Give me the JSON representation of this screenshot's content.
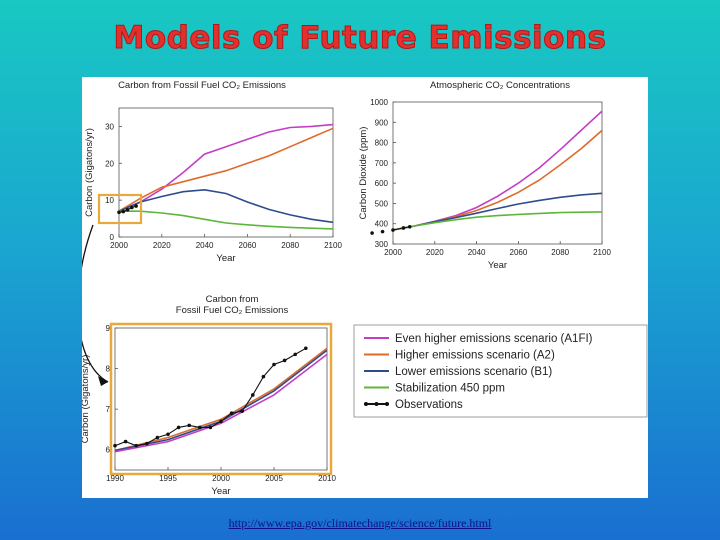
{
  "slide": {
    "title": "Models of Future Emissions",
    "source_url": "http://www.epa.gov/climatechange/science/future.html"
  },
  "colors": {
    "A1FI": "#c23ec6",
    "A2": "#e06a2a",
    "B1": "#2e4c8c",
    "stab": "#5cb63a",
    "obs": "#111111",
    "highlight": "#e8a83a",
    "title": "#e2302e"
  },
  "legend": {
    "items": [
      {
        "key": "A1FI",
        "label": "Even higher emissions scenario (A1FI)",
        "marker": false
      },
      {
        "key": "A2",
        "label": "Higher emissions scenario (A2)",
        "marker": false
      },
      {
        "key": "B1",
        "label": "Lower emissions scenario (B1)",
        "marker": false
      },
      {
        "key": "stab",
        "label": "Stabilization 450 ppm",
        "marker": false
      },
      {
        "key": "obs",
        "label": "Observations",
        "marker": true
      }
    ]
  },
  "chart_data": [
    {
      "id": "fossil",
      "type": "line",
      "title": "Carbon from Fossil Fuel CO₂ Emissions",
      "xlabel": "Year",
      "ylabel": "Carbon (Gigatons/yr)",
      "xlim": [
        2000,
        2100
      ],
      "ylim": [
        0,
        35
      ],
      "xticks": [
        2000,
        2020,
        2040,
        2060,
        2080,
        2100
      ],
      "yticks": [
        0,
        10,
        20,
        30
      ],
      "series": [
        {
          "key": "A1FI",
          "x": [
            2000,
            2010,
            2020,
            2030,
            2040,
            2050,
            2060,
            2070,
            2080,
            2090,
            2100
          ],
          "y": [
            7,
            9.5,
            13,
            17.5,
            22.5,
            24.5,
            26.5,
            28.5,
            29.7,
            30,
            30.5
          ]
        },
        {
          "key": "A2",
          "x": [
            2000,
            2010,
            2020,
            2030,
            2040,
            2050,
            2060,
            2070,
            2080,
            2090,
            2100
          ],
          "y": [
            7,
            10.5,
            13.5,
            15,
            16.5,
            18,
            20,
            22,
            24.5,
            27,
            29.5
          ]
        },
        {
          "key": "B1",
          "x": [
            2000,
            2010,
            2020,
            2030,
            2040,
            2050,
            2060,
            2070,
            2080,
            2090,
            2100
          ],
          "y": [
            7,
            9.5,
            11,
            12.3,
            12.8,
            11.8,
            9.5,
            7.5,
            6,
            4.8,
            4
          ]
        },
        {
          "key": "stab",
          "x": [
            2000,
            2010,
            2020,
            2030,
            2040,
            2050,
            2060,
            2070,
            2080,
            2090,
            2100
          ],
          "y": [
            7,
            7,
            6.5,
            5.8,
            4.8,
            3.8,
            3.3,
            2.9,
            2.6,
            2.4,
            2.2
          ]
        },
        {
          "key": "obs",
          "x": [
            2000,
            2002,
            2004,
            2006,
            2008
          ],
          "y": [
            6.7,
            6.9,
            7.4,
            8,
            8.4
          ]
        }
      ]
    },
    {
      "id": "co2",
      "type": "line",
      "title": "Atmospheric CO₂ Concentrations",
      "xlabel": "Year",
      "ylabel": "Carbon Dioxide (ppm)",
      "xlim": [
        2000,
        2100
      ],
      "ylim": [
        300,
        1000
      ],
      "xticks": [
        2000,
        2020,
        2040,
        2060,
        2080,
        2100
      ],
      "yticks": [
        300,
        400,
        500,
        600,
        700,
        800,
        900,
        1000
      ],
      "series": [
        {
          "key": "A1FI",
          "x": [
            2000,
            2010,
            2020,
            2030,
            2040,
            2050,
            2060,
            2070,
            2080,
            2090,
            2100
          ],
          "y": [
            369,
            388,
            412,
            440,
            480,
            535,
            600,
            675,
            765,
            860,
            955
          ]
        },
        {
          "key": "A2",
          "x": [
            2000,
            2010,
            2020,
            2030,
            2040,
            2050,
            2060,
            2070,
            2080,
            2090,
            2100
          ],
          "y": [
            369,
            388,
            410,
            435,
            465,
            505,
            555,
            615,
            690,
            770,
            860
          ]
        },
        {
          "key": "B1",
          "x": [
            2000,
            2010,
            2020,
            2030,
            2040,
            2050,
            2060,
            2070,
            2080,
            2090,
            2100
          ],
          "y": [
            369,
            388,
            410,
            430,
            452,
            475,
            497,
            515,
            530,
            542,
            550
          ]
        },
        {
          "key": "stab",
          "x": [
            2000,
            2010,
            2020,
            2030,
            2040,
            2050,
            2060,
            2070,
            2080,
            2090,
            2100
          ],
          "y": [
            369,
            388,
            405,
            420,
            432,
            440,
            446,
            451,
            455,
            457,
            458
          ]
        },
        {
          "key": "obs",
          "x": [
            1990,
            1995,
            2000,
            2005,
            2008
          ],
          "y": [
            354,
            361,
            369,
            379,
            385
          ]
        }
      ]
    },
    {
      "id": "zoom",
      "type": "line",
      "title": "Carbon from\nFossil Fuel CO₂ Emissions",
      "xlabel": "Year",
      "ylabel": "Carbon (Gigatons/yr)",
      "xlim": [
        1990,
        2010
      ],
      "ylim": [
        5.5,
        9
      ],
      "xticks": [
        1990,
        1995,
        2000,
        2005,
        2010
      ],
      "yticks": [
        6,
        7,
        8,
        9
      ],
      "series": [
        {
          "key": "A2",
          "x": [
            1990,
            1995,
            2000,
            2005,
            2010
          ],
          "y": [
            5.98,
            6.3,
            6.75,
            7.5,
            8.5
          ]
        },
        {
          "key": "B1",
          "x": [
            1990,
            1995,
            2000,
            2005,
            2010
          ],
          "y": [
            5.98,
            6.25,
            6.7,
            7.45,
            8.45
          ]
        },
        {
          "key": "A1FI",
          "x": [
            1990,
            1995,
            2000,
            2005,
            2010
          ],
          "y": [
            5.95,
            6.2,
            6.65,
            7.35,
            8.35
          ]
        },
        {
          "key": "obs",
          "x": [
            1990,
            1991,
            1992,
            1993,
            1994,
            1995,
            1996,
            1997,
            1998,
            1999,
            2000,
            2001,
            2002,
            2003,
            2004,
            2005,
            2006,
            2007,
            2008
          ],
          "y": [
            6.1,
            6.2,
            6.1,
            6.15,
            6.3,
            6.38,
            6.55,
            6.6,
            6.55,
            6.55,
            6.7,
            6.9,
            6.95,
            7.35,
            7.8,
            8.1,
            8.2,
            8.35,
            8.5
          ]
        }
      ]
    }
  ]
}
